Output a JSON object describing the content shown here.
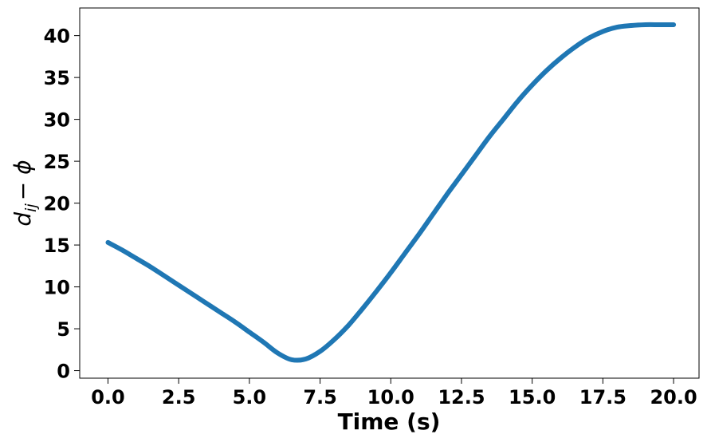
{
  "chart_data": {
    "type": "line",
    "title": "",
    "xlabel": "Time (s)",
    "ylabel_parts": {
      "main": "d",
      "sub": "ij",
      "rest": "− ϕ"
    },
    "xlim": [
      -1.0,
      20.9
    ],
    "ylim": [
      -0.9,
      43.3
    ],
    "xticks": [
      0.0,
      2.5,
      5.0,
      7.5,
      10.0,
      12.5,
      15.0,
      17.5,
      20.0
    ],
    "xtick_labels": [
      "0.0",
      "2.5",
      "5.0",
      "7.5",
      "10.0",
      "12.5",
      "15.0",
      "17.5",
      "20.0"
    ],
    "yticks": [
      0,
      5,
      10,
      15,
      20,
      25,
      30,
      35,
      40
    ],
    "ytick_labels": [
      "0",
      "5",
      "10",
      "15",
      "20",
      "25",
      "30",
      "35",
      "40"
    ],
    "grid": false,
    "series": [
      {
        "color": "#1f77b4",
        "x": [
          0,
          0.5,
          1,
          1.5,
          2,
          2.5,
          3,
          3.5,
          4,
          4.5,
          5,
          5.5,
          6,
          6.5,
          7,
          7.5,
          8,
          8.5,
          9,
          9.5,
          10,
          10.5,
          11,
          11.5,
          12,
          12.5,
          13,
          13.5,
          14,
          14.5,
          15,
          15.5,
          16,
          16.5,
          17,
          17.5,
          18,
          18.5,
          19,
          19.5,
          20
        ],
        "y": [
          15.3,
          14.4,
          13.4,
          12.4,
          11.3,
          10.2,
          9.1,
          8.0,
          6.9,
          5.8,
          4.6,
          3.4,
          2.1,
          1.3,
          1.4,
          2.3,
          3.7,
          5.4,
          7.4,
          9.5,
          11.7,
          14.0,
          16.3,
          18.7,
          21.1,
          23.4,
          25.7,
          28.0,
          30.1,
          32.2,
          34.1,
          35.8,
          37.3,
          38.6,
          39.7,
          40.5,
          41.0,
          41.2,
          41.3,
          41.3,
          41.3
        ]
      }
    ]
  }
}
